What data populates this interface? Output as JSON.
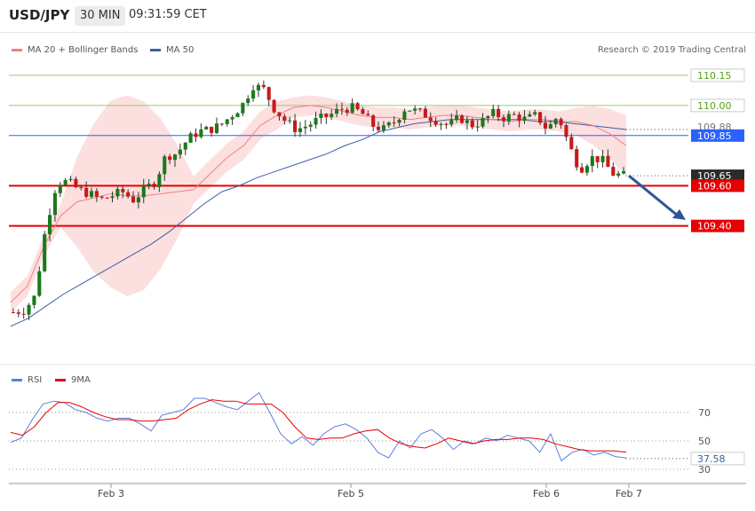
{
  "header": {
    "symbol": "USD/JPY",
    "timeframe": "30 MIN",
    "time": "09:31:59 CET"
  },
  "legend": {
    "ma20_label": "MA 20 + Bollinger Bands",
    "ma50_label": "MA 50",
    "rsi_label": "RSI",
    "rsi_ma_label": "9MA",
    "credit": "Research © 2019 Trading Central"
  },
  "colors": {
    "candle_up": "#1a7a1a",
    "candle_down": "#c81a1a",
    "bollinger_fill": "#fbd9d9",
    "ma20": "#f08080",
    "ma50": "#3a5fa8",
    "resistance": "#9ccc65",
    "pivot": "#2962ff",
    "support": "#e60000",
    "arrow": "#2b5797",
    "rsi": "#5b7fdc",
    "rsi_ma": "#e60000"
  },
  "chart_data": [
    {
      "type": "candlestick",
      "title": "USD/JPY 30 MIN",
      "x_labels": [
        "Feb 3",
        "Feb 5",
        "Feb 6",
        "Feb 7"
      ],
      "ylim": [
        108.78,
        110.26
      ],
      "indicators": [
        "MA 20 + Bollinger Bands",
        "MA 50"
      ],
      "levels": [
        {
          "label": "110.15",
          "value": 110.15,
          "kind": "resistance"
        },
        {
          "label": "110.00",
          "value": 110.0,
          "kind": "resistance"
        },
        {
          "label": "109.88",
          "value": 109.88,
          "kind": "ma50"
        },
        {
          "label": "109.85",
          "value": 109.85,
          "kind": "pivot"
        },
        {
          "label": "109.65",
          "value": 109.65,
          "kind": "last"
        },
        {
          "label": "109.60",
          "value": 109.6,
          "kind": "support"
        },
        {
          "label": "109.40",
          "value": 109.4,
          "kind": "support"
        }
      ],
      "price_path": [
        108.97,
        108.98,
        109.05,
        109.4,
        109.62,
        109.62,
        109.58,
        109.56,
        109.53,
        109.55,
        109.57,
        109.53,
        109.58,
        109.62,
        109.75,
        109.76,
        109.83,
        109.87,
        109.88,
        109.9,
        109.95,
        110.0,
        110.1,
        110.08,
        109.98,
        109.92,
        109.88,
        109.9,
        109.93,
        109.95,
        109.98,
        109.99,
        109.96,
        109.9,
        109.88,
        109.92,
        109.99,
        109.97,
        109.95,
        109.92,
        109.9,
        109.94,
        109.9,
        109.92,
        109.96,
        109.94,
        109.95,
        109.93,
        109.95,
        109.88,
        109.95,
        109.8,
        109.68,
        109.74,
        109.73,
        109.66,
        109.65
      ],
      "ma20_path": [
        109.02,
        109.1,
        109.3,
        109.45,
        109.52,
        109.54,
        109.56,
        109.55,
        109.55,
        109.56,
        109.57,
        109.58,
        109.66,
        109.74,
        109.8,
        109.9,
        109.95,
        109.99,
        110.0,
        109.99,
        109.97,
        109.95,
        109.94,
        109.94,
        109.93,
        109.94,
        109.95,
        109.95,
        109.94,
        109.93,
        109.92,
        109.93,
        109.93,
        109.92,
        109.92,
        109.9,
        109.86,
        109.8
      ],
      "ma50_path": [
        108.9,
        108.94,
        109.0,
        109.06,
        109.11,
        109.16,
        109.21,
        109.26,
        109.31,
        109.37,
        109.44,
        109.51,
        109.57,
        109.6,
        109.64,
        109.67,
        109.7,
        109.73,
        109.76,
        109.8,
        109.83,
        109.87,
        109.89,
        109.91,
        109.92,
        109.93,
        109.93,
        109.93,
        109.93,
        109.93,
        109.92,
        109.92,
        109.91,
        109.9,
        109.89,
        109.88
      ]
    },
    {
      "type": "line",
      "title": "RSI",
      "series": [
        {
          "name": "RSI",
          "values": [
            49,
            52,
            65,
            76,
            78,
            77,
            72,
            70,
            66,
            64,
            66,
            66,
            62,
            57,
            68,
            70,
            72,
            80,
            80,
            77,
            74,
            72,
            78,
            84,
            70,
            55,
            48,
            53,
            47,
            55,
            60,
            62,
            58,
            52,
            42,
            38,
            50,
            45,
            55,
            58,
            52,
            44,
            50,
            48,
            52,
            50,
            54,
            52,
            50,
            42,
            55,
            36,
            42,
            44,
            40,
            42,
            39,
            38
          ]
        },
        {
          "name": "9MA",
          "values": [
            56,
            54,
            60,
            70,
            77,
            77,
            74,
            70,
            67,
            65,
            65,
            64,
            64,
            65,
            66,
            72,
            76,
            79,
            78,
            78,
            76,
            76,
            76,
            70,
            60,
            52,
            51,
            52,
            52,
            55,
            57,
            58,
            52,
            48,
            46,
            45,
            48,
            52,
            50,
            48,
            50,
            51,
            51,
            52,
            52,
            51,
            48,
            46,
            44,
            43,
            43,
            43,
            42
          ]
        }
      ],
      "ylim": [
        20,
        95
      ],
      "ticks": [
        "70",
        "50",
        "30"
      ],
      "last_value": "37.58"
    }
  ]
}
